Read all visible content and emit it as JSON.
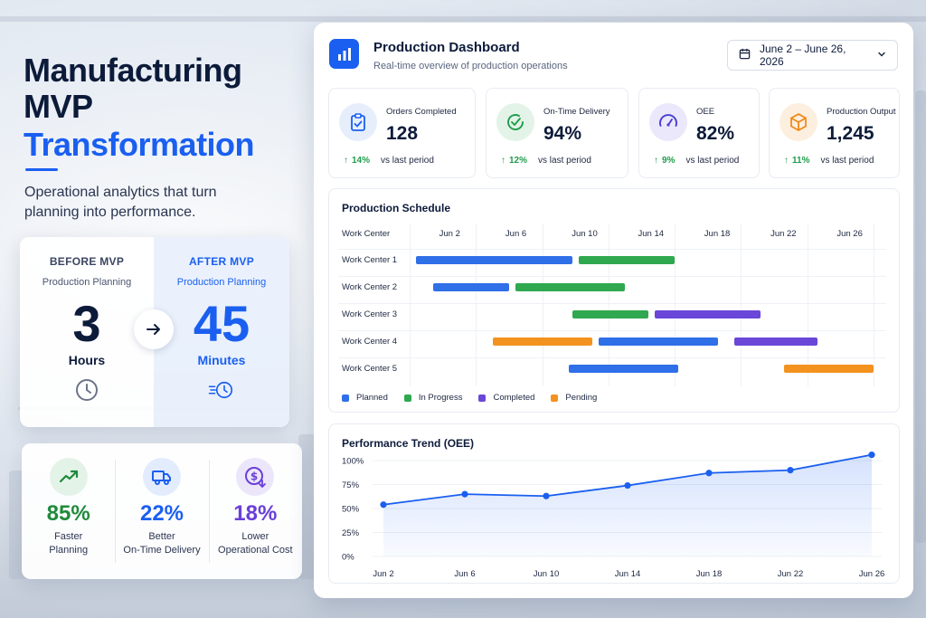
{
  "headline": {
    "line1": "Manufacturing",
    "line2": "MVP",
    "line3": "Transformation",
    "subtitle": "Operational analytics that turn planning into performance."
  },
  "comparison": {
    "before": {
      "title": "BEFORE MVP",
      "subtitle": "Production Planning",
      "value": "3",
      "unit": "Hours",
      "icon": "clock-icon"
    },
    "after": {
      "title": "AFTER MVP",
      "subtitle": "Production Planning",
      "value": "45",
      "unit": "Minutes",
      "icon": "fast-clock-icon"
    },
    "arrow_icon": "arrow-right-icon"
  },
  "kpis": [
    {
      "value": "85%",
      "label_line1": "Faster",
      "label_line2": "Planning",
      "icon": "trending-up-icon",
      "color": "#1f8a3c",
      "bg": "#e3f3e8"
    },
    {
      "value": "22%",
      "label_line1": "Better",
      "label_line2": "On-Time Delivery",
      "icon": "truck-icon",
      "color": "#1a5ff0",
      "bg": "#e3ecfd"
    },
    {
      "value": "18%",
      "label_line1": "Lower",
      "label_line2": "Operational Cost",
      "icon": "dollar-down-icon",
      "color": "#6a3fd8",
      "bg": "#ece6fb"
    }
  ],
  "dashboard": {
    "title": "Production Dashboard",
    "subtitle": "Real-time overview of production operations",
    "date_range": "June 2 – June 26, 2026",
    "stats": [
      {
        "title": "Orders Completed",
        "value": "128",
        "delta": "14%",
        "compare": "vs last period",
        "icon": "clipboard-check-icon",
        "color": "#1a5ff0",
        "bg": "#e6eefc"
      },
      {
        "title": "On-Time Delivery",
        "value": "94%",
        "delta": "12%",
        "compare": "vs last period",
        "icon": "clock-check-icon",
        "color": "#1f9d4a",
        "bg": "#e3f3e8"
      },
      {
        "title": "OEE",
        "value": "82%",
        "delta": "9%",
        "compare": "vs last period",
        "icon": "gauge-icon",
        "color": "#4a3fd0",
        "bg": "#ebe8fb"
      },
      {
        "title": "Production Output",
        "value": "1,245",
        "delta": "11%",
        "compare": "vs last period",
        "icon": "box-icon",
        "color": "#f08a1a",
        "bg": "#fdefdf"
      }
    ],
    "schedule": {
      "title": "Production Schedule",
      "column_header": "Work Center",
      "dates": [
        "Jun 2",
        "Jun 6",
        "Jun 10",
        "Jun 14",
        "Jun 18",
        "Jun 22",
        "Jun 26"
      ],
      "rows": [
        {
          "name": "Work Center 1",
          "tasks": [
            {
              "status": "planned",
              "start": 0.2,
              "end": 4.9
            },
            {
              "status": "in_progress",
              "start": 5.1,
              "end": 8.0
            }
          ]
        },
        {
          "name": "Work Center 2",
          "tasks": [
            {
              "status": "planned",
              "start": 0.7,
              "end": 3.0
            },
            {
              "status": "in_progress",
              "start": 3.2,
              "end": 6.5
            }
          ]
        },
        {
          "name": "Work Center 3",
          "tasks": [
            {
              "status": "in_progress",
              "start": 4.9,
              "end": 7.2
            },
            {
              "status": "completed",
              "start": 7.4,
              "end": 10.6
            }
          ]
        },
        {
          "name": "Work Center 4",
          "tasks": [
            {
              "status": "pending",
              "start": 2.5,
              "end": 5.5
            },
            {
              "status": "planned",
              "start": 5.7,
              "end": 9.3
            },
            {
              "status": "completed",
              "start": 9.8,
              "end": 12.3
            }
          ]
        },
        {
          "name": "Work Center 5",
          "tasks": [
            {
              "status": "planned",
              "start": 4.8,
              "end": 8.1
            },
            {
              "status": "pending",
              "start": 11.3,
              "end": 14.0
            }
          ]
        }
      ],
      "legend": [
        {
          "status": "planned",
          "label": "Planned",
          "color": "#2f6fe8"
        },
        {
          "status": "in_progress",
          "label": "In Progress",
          "color": "#2fa84f"
        },
        {
          "status": "completed",
          "label": "Completed",
          "color": "#6a46d9"
        },
        {
          "status": "pending",
          "label": "Pending",
          "color": "#f3921f"
        }
      ]
    }
  },
  "chart_data": {
    "type": "area",
    "title": "Performance Trend (OEE)",
    "categories": [
      "Jun 2",
      "Jun 6",
      "Jun 10",
      "Jun 14",
      "Jun 18",
      "Jun 22",
      "Jun 26"
    ],
    "y_ticks": [
      "100%",
      "75%",
      "50%",
      "25%",
      "0%"
    ],
    "ylim": [
      0,
      100
    ],
    "series": [
      {
        "values": [
          54,
          65,
          63,
          74,
          87,
          90,
          106
        ]
      }
    ],
    "color": "#1a5ff0"
  }
}
